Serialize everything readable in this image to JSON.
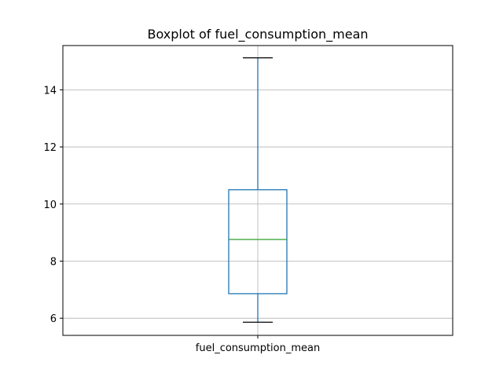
{
  "chart_data": {
    "type": "box",
    "title": "Boxplot of fuel_consumption_mean",
    "categories": [
      "fuel_consumption_mean"
    ],
    "yticks": [
      6,
      8,
      10,
      12,
      14
    ],
    "ylim": [
      5.4,
      15.55
    ],
    "grid": true,
    "boxes": [
      {
        "name": "fuel_consumption_mean",
        "whisker_low": 5.86,
        "q1": 6.86,
        "median": 8.76,
        "q3": 10.5,
        "whisker_high": 15.12
      }
    ],
    "colors": {
      "box": "#1f77b4",
      "median": "#2ca02c",
      "whisker_cap": "#000000",
      "grid": "#b0b0b0",
      "axes": "#000000"
    }
  }
}
